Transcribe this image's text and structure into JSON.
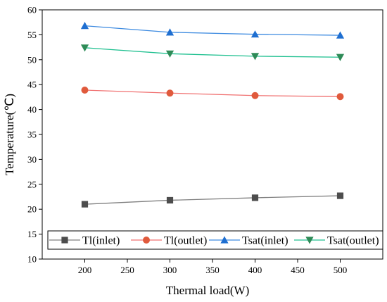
{
  "chart_data": {
    "type": "line",
    "xlabel": "Thermal load(W)",
    "ylabel": "Temperature(℃)",
    "xlim": [
      150,
      550
    ],
    "ylim": [
      10,
      60
    ],
    "x_ticks": [
      200,
      250,
      300,
      350,
      400,
      450,
      500
    ],
    "y_ticks": [
      10,
      15,
      20,
      25,
      30,
      35,
      40,
      45,
      50,
      55,
      60
    ],
    "x": [
      200,
      300,
      400,
      500
    ],
    "grid": false,
    "legend_position": "bottom",
    "series": [
      {
        "name": "Tl(inlet)",
        "values": [
          21.0,
          21.8,
          22.3,
          22.7
        ],
        "color": "#4d4d4d",
        "line_color": "#808080",
        "marker": "square"
      },
      {
        "name": "Tl(outlet)",
        "values": [
          43.9,
          43.3,
          42.8,
          42.6
        ],
        "color": "#e05a3c",
        "line_color": "#f07070",
        "marker": "circle"
      },
      {
        "name": "Tsat(inlet)",
        "values": [
          56.8,
          55.5,
          55.1,
          54.9
        ],
        "color": "#1f6fd1",
        "line_color": "#3c8ae0",
        "marker": "triangle-up"
      },
      {
        "name": "Tsat(outlet)",
        "values": [
          52.4,
          51.2,
          50.7,
          50.5
        ],
        "color": "#2e8b57",
        "line_color": "#20c090",
        "marker": "triangle-down"
      }
    ]
  }
}
